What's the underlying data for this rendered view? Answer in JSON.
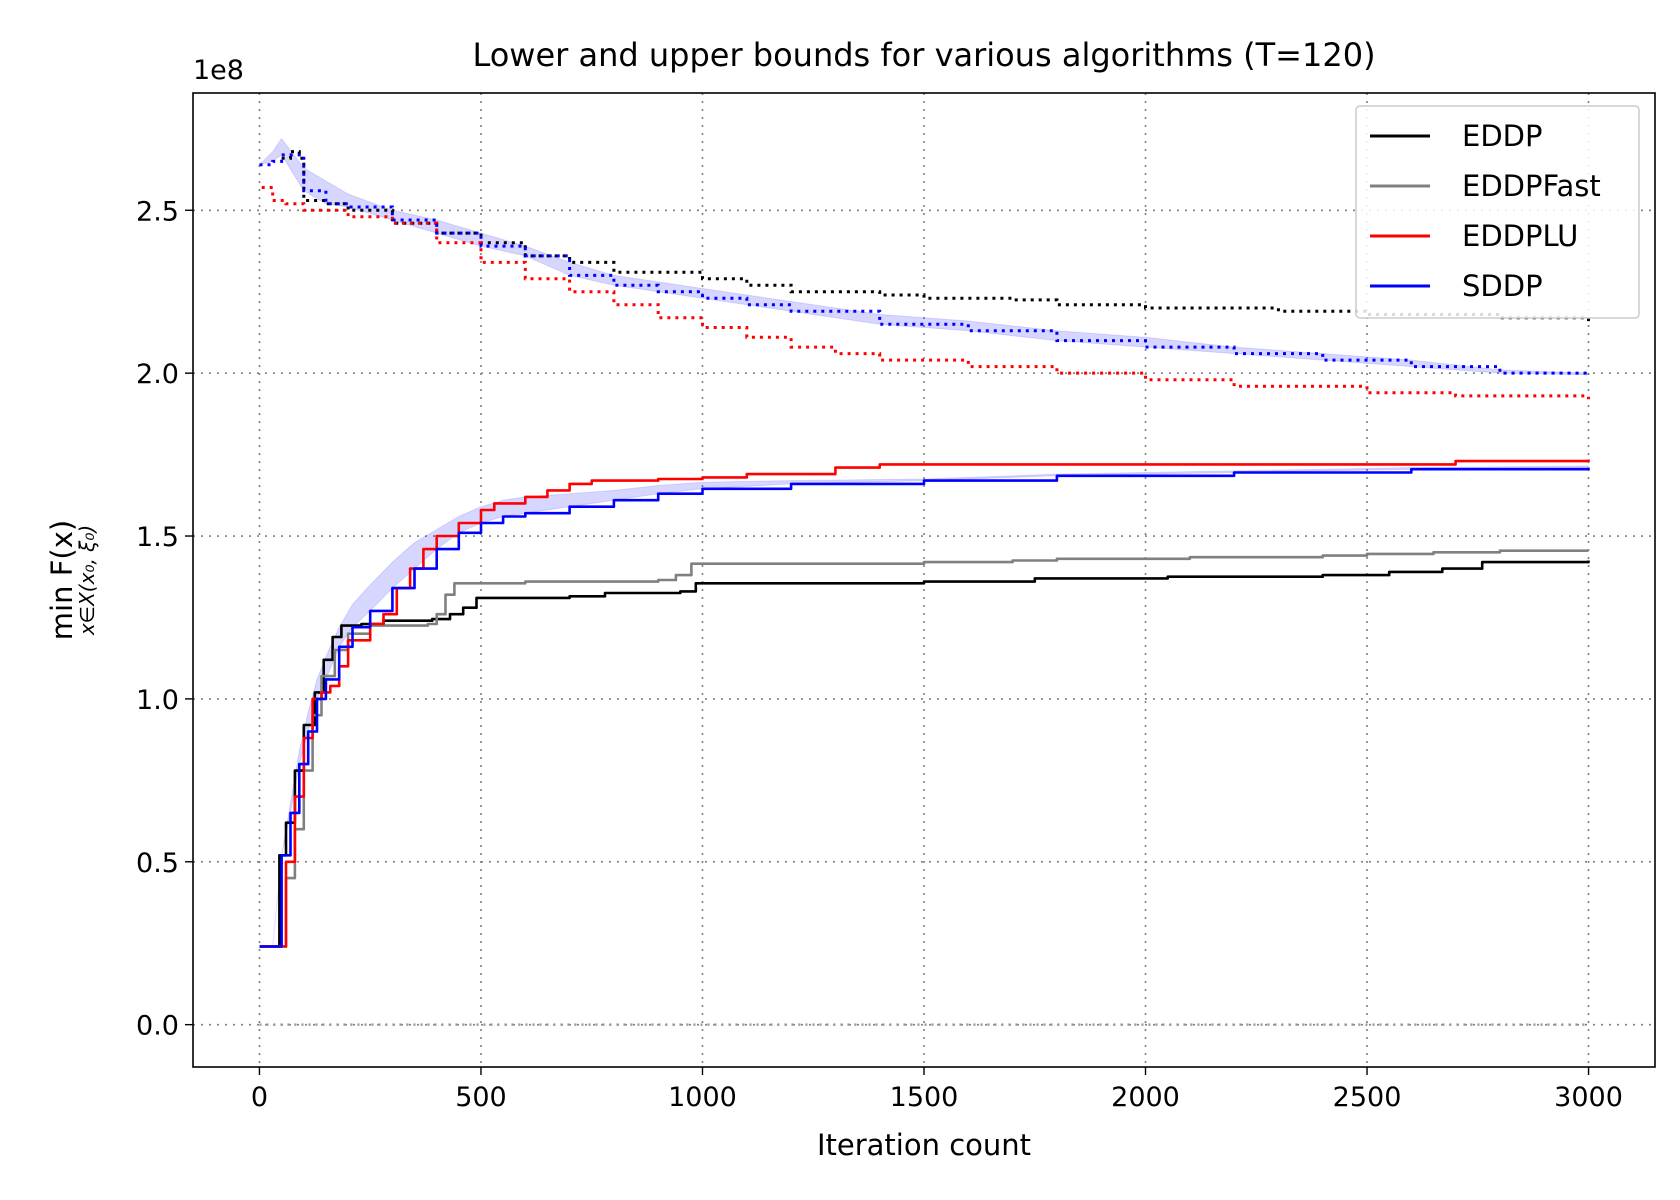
{
  "chart_data": {
    "type": "line",
    "title": "Lower and upper bounds for various algorithms (T=120)",
    "xlabel": "Iteration count",
    "ylabel": "min F(x)",
    "ylabel_subscript": "x∈X(x₀, ξ₀)",
    "y_scale_label": "1e8",
    "xlim": [
      -150,
      3150
    ],
    "ylim": [
      -0.13,
      2.86
    ],
    "y_multiplier": 100000000,
    "x_ticks": [
      0,
      500,
      1000,
      1500,
      2000,
      2500,
      3000
    ],
    "x_tick_labels": [
      "0",
      "500",
      "1000",
      "1500",
      "2000",
      "2500",
      "3000"
    ],
    "y_ticks": [
      0.0,
      0.5,
      1.0,
      1.5,
      2.0,
      2.5
    ],
    "y_tick_labels": [
      "0.0",
      "0.5",
      "1.0",
      "1.5",
      "2.0",
      "2.5"
    ],
    "grid": true,
    "legend_position": "top-right",
    "zero_line": 0.0,
    "series": [
      {
        "name": "EDDP",
        "color": "#000000",
        "lower": [
          [
            0,
            0.24
          ],
          [
            30,
            0.24
          ],
          [
            45,
            0.52
          ],
          [
            60,
            0.62
          ],
          [
            80,
            0.78
          ],
          [
            100,
            0.92
          ],
          [
            125,
            1.02
          ],
          [
            145,
            1.12
          ],
          [
            165,
            1.19
          ],
          [
            185,
            1.225
          ],
          [
            230,
            1.23
          ],
          [
            280,
            1.24
          ],
          [
            390,
            1.245
          ],
          [
            430,
            1.26
          ],
          [
            460,
            1.28
          ],
          [
            490,
            1.31
          ],
          [
            700,
            1.315
          ],
          [
            780,
            1.325
          ],
          [
            950,
            1.33
          ],
          [
            985,
            1.355
          ],
          [
            1500,
            1.36
          ],
          [
            1750,
            1.37
          ],
          [
            2050,
            1.375
          ],
          [
            2400,
            1.38
          ],
          [
            2550,
            1.39
          ],
          [
            2670,
            1.4
          ],
          [
            2760,
            1.42
          ],
          [
            3000,
            1.425
          ]
        ],
        "upper": [
          [
            50,
            2.66
          ],
          [
            70,
            2.68
          ],
          [
            90,
            2.66
          ],
          [
            100,
            2.53
          ],
          [
            150,
            2.52
          ],
          [
            200,
            2.5
          ],
          [
            300,
            2.46
          ],
          [
            400,
            2.43
          ],
          [
            500,
            2.4
          ],
          [
            600,
            2.36
          ],
          [
            700,
            2.34
          ],
          [
            800,
            2.31
          ],
          [
            1000,
            2.29
          ],
          [
            1100,
            2.27
          ],
          [
            1200,
            2.25
          ],
          [
            1400,
            2.24
          ],
          [
            1500,
            2.23
          ],
          [
            1700,
            2.225
          ],
          [
            1800,
            2.21
          ],
          [
            2000,
            2.2
          ],
          [
            2300,
            2.19
          ],
          [
            2500,
            2.18
          ],
          [
            2800,
            2.17
          ],
          [
            3000,
            2.15
          ]
        ]
      },
      {
        "name": "EDDPFast",
        "color": "#808080",
        "lower": [
          [
            0,
            0.24
          ],
          [
            40,
            0.24
          ],
          [
            60,
            0.45
          ],
          [
            80,
            0.6
          ],
          [
            100,
            0.78
          ],
          [
            120,
            0.95
          ],
          [
            140,
            1.07
          ],
          [
            170,
            1.15
          ],
          [
            200,
            1.2
          ],
          [
            250,
            1.225
          ],
          [
            380,
            1.23
          ],
          [
            400,
            1.26
          ],
          [
            420,
            1.32
          ],
          [
            440,
            1.355
          ],
          [
            600,
            1.36
          ],
          [
            900,
            1.365
          ],
          [
            940,
            1.38
          ],
          [
            975,
            1.415
          ],
          [
            1500,
            1.42
          ],
          [
            1700,
            1.425
          ],
          [
            1800,
            1.43
          ],
          [
            2100,
            1.435
          ],
          [
            2400,
            1.44
          ],
          [
            2500,
            1.445
          ],
          [
            2650,
            1.45
          ],
          [
            2800,
            1.455
          ],
          [
            3000,
            1.455
          ]
        ],
        "upper": []
      },
      {
        "name": "EDDPLU",
        "color": "#ff0000",
        "lower": [
          [
            0,
            0.24
          ],
          [
            40,
            0.24
          ],
          [
            60,
            0.5
          ],
          [
            80,
            0.7
          ],
          [
            100,
            0.88
          ],
          [
            120,
            1.0
          ],
          [
            140,
            1.02
          ],
          [
            160,
            1.04
          ],
          [
            180,
            1.1
          ],
          [
            200,
            1.18
          ],
          [
            250,
            1.23
          ],
          [
            280,
            1.26
          ],
          [
            310,
            1.34
          ],
          [
            340,
            1.4
          ],
          [
            370,
            1.46
          ],
          [
            400,
            1.5
          ],
          [
            450,
            1.54
          ],
          [
            500,
            1.58
          ],
          [
            530,
            1.6
          ],
          [
            600,
            1.62
          ],
          [
            650,
            1.64
          ],
          [
            700,
            1.66
          ],
          [
            750,
            1.67
          ],
          [
            900,
            1.675
          ],
          [
            1000,
            1.68
          ],
          [
            1100,
            1.69
          ],
          [
            1300,
            1.71
          ],
          [
            1400,
            1.72
          ],
          [
            1700,
            1.72
          ],
          [
            2500,
            1.72
          ],
          [
            2700,
            1.73
          ],
          [
            3000,
            1.735
          ]
        ],
        "upper": [
          [
            5,
            2.57
          ],
          [
            30,
            2.53
          ],
          [
            60,
            2.52
          ],
          [
            100,
            2.5
          ],
          [
            200,
            2.48
          ],
          [
            300,
            2.46
          ],
          [
            400,
            2.4
          ],
          [
            500,
            2.34
          ],
          [
            600,
            2.29
          ],
          [
            700,
            2.25
          ],
          [
            800,
            2.21
          ],
          [
            900,
            2.17
          ],
          [
            1000,
            2.14
          ],
          [
            1100,
            2.11
          ],
          [
            1200,
            2.08
          ],
          [
            1300,
            2.06
          ],
          [
            1400,
            2.04
          ],
          [
            1600,
            2.02
          ],
          [
            1800,
            2.0
          ],
          [
            2000,
            1.98
          ],
          [
            2200,
            1.96
          ],
          [
            2500,
            1.94
          ],
          [
            2700,
            1.93
          ],
          [
            3000,
            1.92
          ]
        ]
      },
      {
        "name": "SDDP",
        "color": "#0000ff",
        "lower": [
          [
            0,
            0.24
          ],
          [
            30,
            0.24
          ],
          [
            50,
            0.52
          ],
          [
            70,
            0.65
          ],
          [
            90,
            0.8
          ],
          [
            110,
            0.9
          ],
          [
            130,
            1.0
          ],
          [
            150,
            1.06
          ],
          [
            180,
            1.16
          ],
          [
            210,
            1.22
          ],
          [
            250,
            1.27
          ],
          [
            300,
            1.34
          ],
          [
            350,
            1.4
          ],
          [
            400,
            1.46
          ],
          [
            450,
            1.51
          ],
          [
            500,
            1.54
          ],
          [
            550,
            1.56
          ],
          [
            600,
            1.57
          ],
          [
            700,
            1.59
          ],
          [
            800,
            1.61
          ],
          [
            900,
            1.63
          ],
          [
            1000,
            1.645
          ],
          [
            1200,
            1.66
          ],
          [
            1500,
            1.67
          ],
          [
            1800,
            1.685
          ],
          [
            2200,
            1.695
          ],
          [
            2600,
            1.705
          ],
          [
            3000,
            1.71
          ]
        ],
        "upper": [
          [
            0,
            2.64
          ],
          [
            30,
            2.65
          ],
          [
            50,
            2.67
          ],
          [
            100,
            2.56
          ],
          [
            150,
            2.52
          ],
          [
            200,
            2.51
          ],
          [
            300,
            2.47
          ],
          [
            400,
            2.43
          ],
          [
            500,
            2.39
          ],
          [
            600,
            2.36
          ],
          [
            700,
            2.3
          ],
          [
            800,
            2.27
          ],
          [
            900,
            2.25
          ],
          [
            1000,
            2.23
          ],
          [
            1100,
            2.21
          ],
          [
            1200,
            2.19
          ],
          [
            1400,
            2.15
          ],
          [
            1600,
            2.13
          ],
          [
            1800,
            2.1
          ],
          [
            2000,
            2.08
          ],
          [
            2200,
            2.06
          ],
          [
            2400,
            2.04
          ],
          [
            2600,
            2.02
          ],
          [
            2800,
            2.0
          ],
          [
            3000,
            1.995
          ]
        ],
        "band_lower": [
          [
            0,
            0.24
          ],
          [
            30,
            0.24
          ],
          [
            50,
            0.52
          ],
          [
            70,
            0.68
          ],
          [
            90,
            0.84
          ],
          [
            110,
            0.96
          ],
          [
            130,
            1.06
          ],
          [
            150,
            1.13
          ],
          [
            180,
            1.22
          ],
          [
            210,
            1.29
          ],
          [
            250,
            1.35
          ],
          [
            300,
            1.42
          ],
          [
            350,
            1.48
          ],
          [
            400,
            1.52
          ],
          [
            450,
            1.56
          ],
          [
            500,
            1.59
          ],
          [
            550,
            1.61
          ],
          [
            600,
            1.62
          ],
          [
            700,
            1.63
          ],
          [
            800,
            1.64
          ],
          [
            900,
            1.655
          ],
          [
            1000,
            1.665
          ],
          [
            1200,
            1.67
          ],
          [
            1500,
            1.675
          ],
          [
            1800,
            1.69
          ],
          [
            2200,
            1.7
          ],
          [
            2600,
            1.71
          ],
          [
            3000,
            1.715
          ]
        ],
        "band_upper": [
          [
            0,
            2.64
          ],
          [
            30,
            2.68
          ],
          [
            50,
            2.72
          ],
          [
            100,
            2.63
          ],
          [
            150,
            2.59
          ],
          [
            200,
            2.55
          ],
          [
            300,
            2.5
          ],
          [
            400,
            2.47
          ],
          [
            500,
            2.43
          ],
          [
            600,
            2.39
          ],
          [
            700,
            2.34
          ],
          [
            800,
            2.3
          ],
          [
            900,
            2.28
          ],
          [
            1000,
            2.26
          ],
          [
            1100,
            2.24
          ],
          [
            1200,
            2.22
          ],
          [
            1400,
            2.18
          ],
          [
            1600,
            2.16
          ],
          [
            1800,
            2.13
          ],
          [
            2000,
            2.11
          ],
          [
            2200,
            2.08
          ],
          [
            2400,
            2.06
          ],
          [
            2600,
            2.04
          ],
          [
            2800,
            2.01
          ],
          [
            3000,
            2.0
          ]
        ]
      }
    ]
  }
}
